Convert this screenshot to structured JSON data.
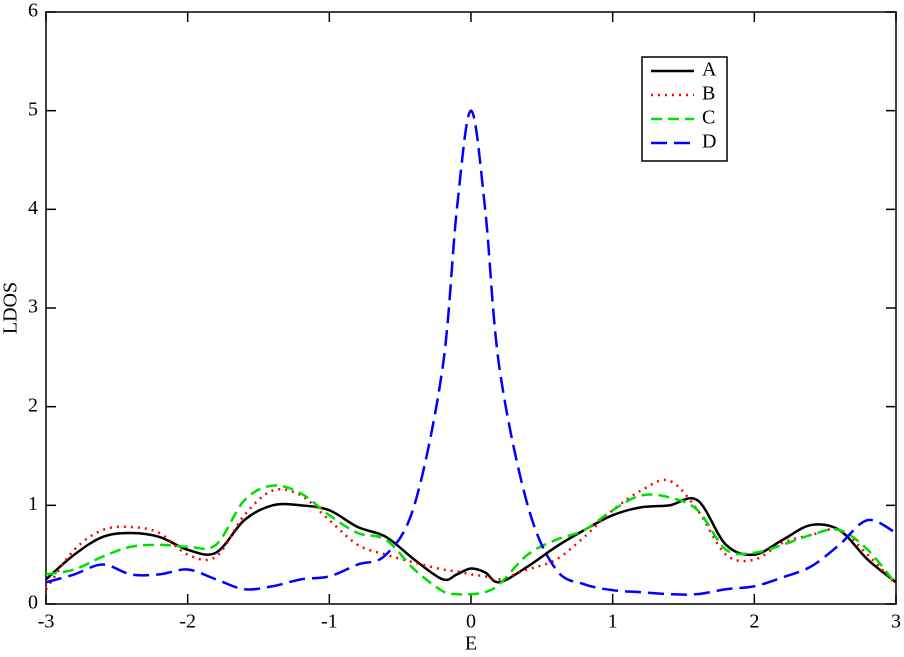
{
  "chart_data": {
    "type": "line",
    "xlabel": "E",
    "ylabel": "LDOS",
    "xlim": [
      -3,
      3
    ],
    "ylim": [
      0,
      6
    ],
    "xticks": [
      -3,
      -2,
      -1,
      0,
      1,
      2,
      3
    ],
    "yticks": [
      0,
      1,
      2,
      3,
      4,
      5,
      6
    ],
    "legend": "upper-right",
    "x": [
      -3,
      -2.8,
      -2.6,
      -2.4,
      -2.2,
      -2.0,
      -1.8,
      -1.6,
      -1.4,
      -1.2,
      -1.0,
      -0.8,
      -0.6,
      -0.4,
      -0.2,
      -0.1,
      0,
      0.1,
      0.2,
      0.4,
      0.6,
      0.8,
      1.0,
      1.2,
      1.4,
      1.6,
      1.8,
      2.0,
      2.2,
      2.4,
      2.6,
      2.8,
      3
    ],
    "series": [
      {
        "name": "A",
        "color": "#000000",
        "dash": "none",
        "values": [
          0.25,
          0.5,
          0.68,
          0.72,
          0.68,
          0.55,
          0.52,
          0.85,
          1.0,
          1.0,
          0.95,
          0.78,
          0.68,
          0.45,
          0.25,
          0.3,
          0.36,
          0.32,
          0.22,
          0.38,
          0.58,
          0.75,
          0.9,
          0.98,
          1.0,
          1.05,
          0.6,
          0.5,
          0.65,
          0.8,
          0.75,
          0.45,
          0.22
        ]
      },
      {
        "name": "B",
        "color": "#ff0000",
        "dash": "2,5",
        "values": [
          0.15,
          0.55,
          0.75,
          0.78,
          0.72,
          0.5,
          0.48,
          0.9,
          1.15,
          1.1,
          0.85,
          0.6,
          0.5,
          0.42,
          0.35,
          0.33,
          0.3,
          0.28,
          0.25,
          0.35,
          0.45,
          0.68,
          0.95,
          1.15,
          1.25,
          0.95,
          0.5,
          0.45,
          0.62,
          0.7,
          0.75,
          0.5,
          0.2
        ]
      },
      {
        "name": "C",
        "color": "#00e000",
        "dash": "11,6",
        "values": [
          0.3,
          0.35,
          0.48,
          0.58,
          0.6,
          0.58,
          0.6,
          1.05,
          1.2,
          1.12,
          0.9,
          0.72,
          0.65,
          0.35,
          0.13,
          0.1,
          0.1,
          0.12,
          0.2,
          0.5,
          0.65,
          0.75,
          0.95,
          1.1,
          1.08,
          0.95,
          0.55,
          0.52,
          0.6,
          0.7,
          0.75,
          0.55,
          0.2
        ]
      },
      {
        "name": "D",
        "color": "#0000ff",
        "dash": "16,7",
        "values": [
          0.22,
          0.3,
          0.4,
          0.3,
          0.3,
          0.35,
          0.25,
          0.15,
          0.18,
          0.25,
          0.28,
          0.4,
          0.5,
          1.0,
          2.4,
          4.0,
          5.0,
          4.0,
          2.4,
          1.0,
          0.35,
          0.2,
          0.14,
          0.12,
          0.1,
          0.1,
          0.15,
          0.18,
          0.27,
          0.38,
          0.6,
          0.85,
          0.72
        ]
      }
    ]
  }
}
